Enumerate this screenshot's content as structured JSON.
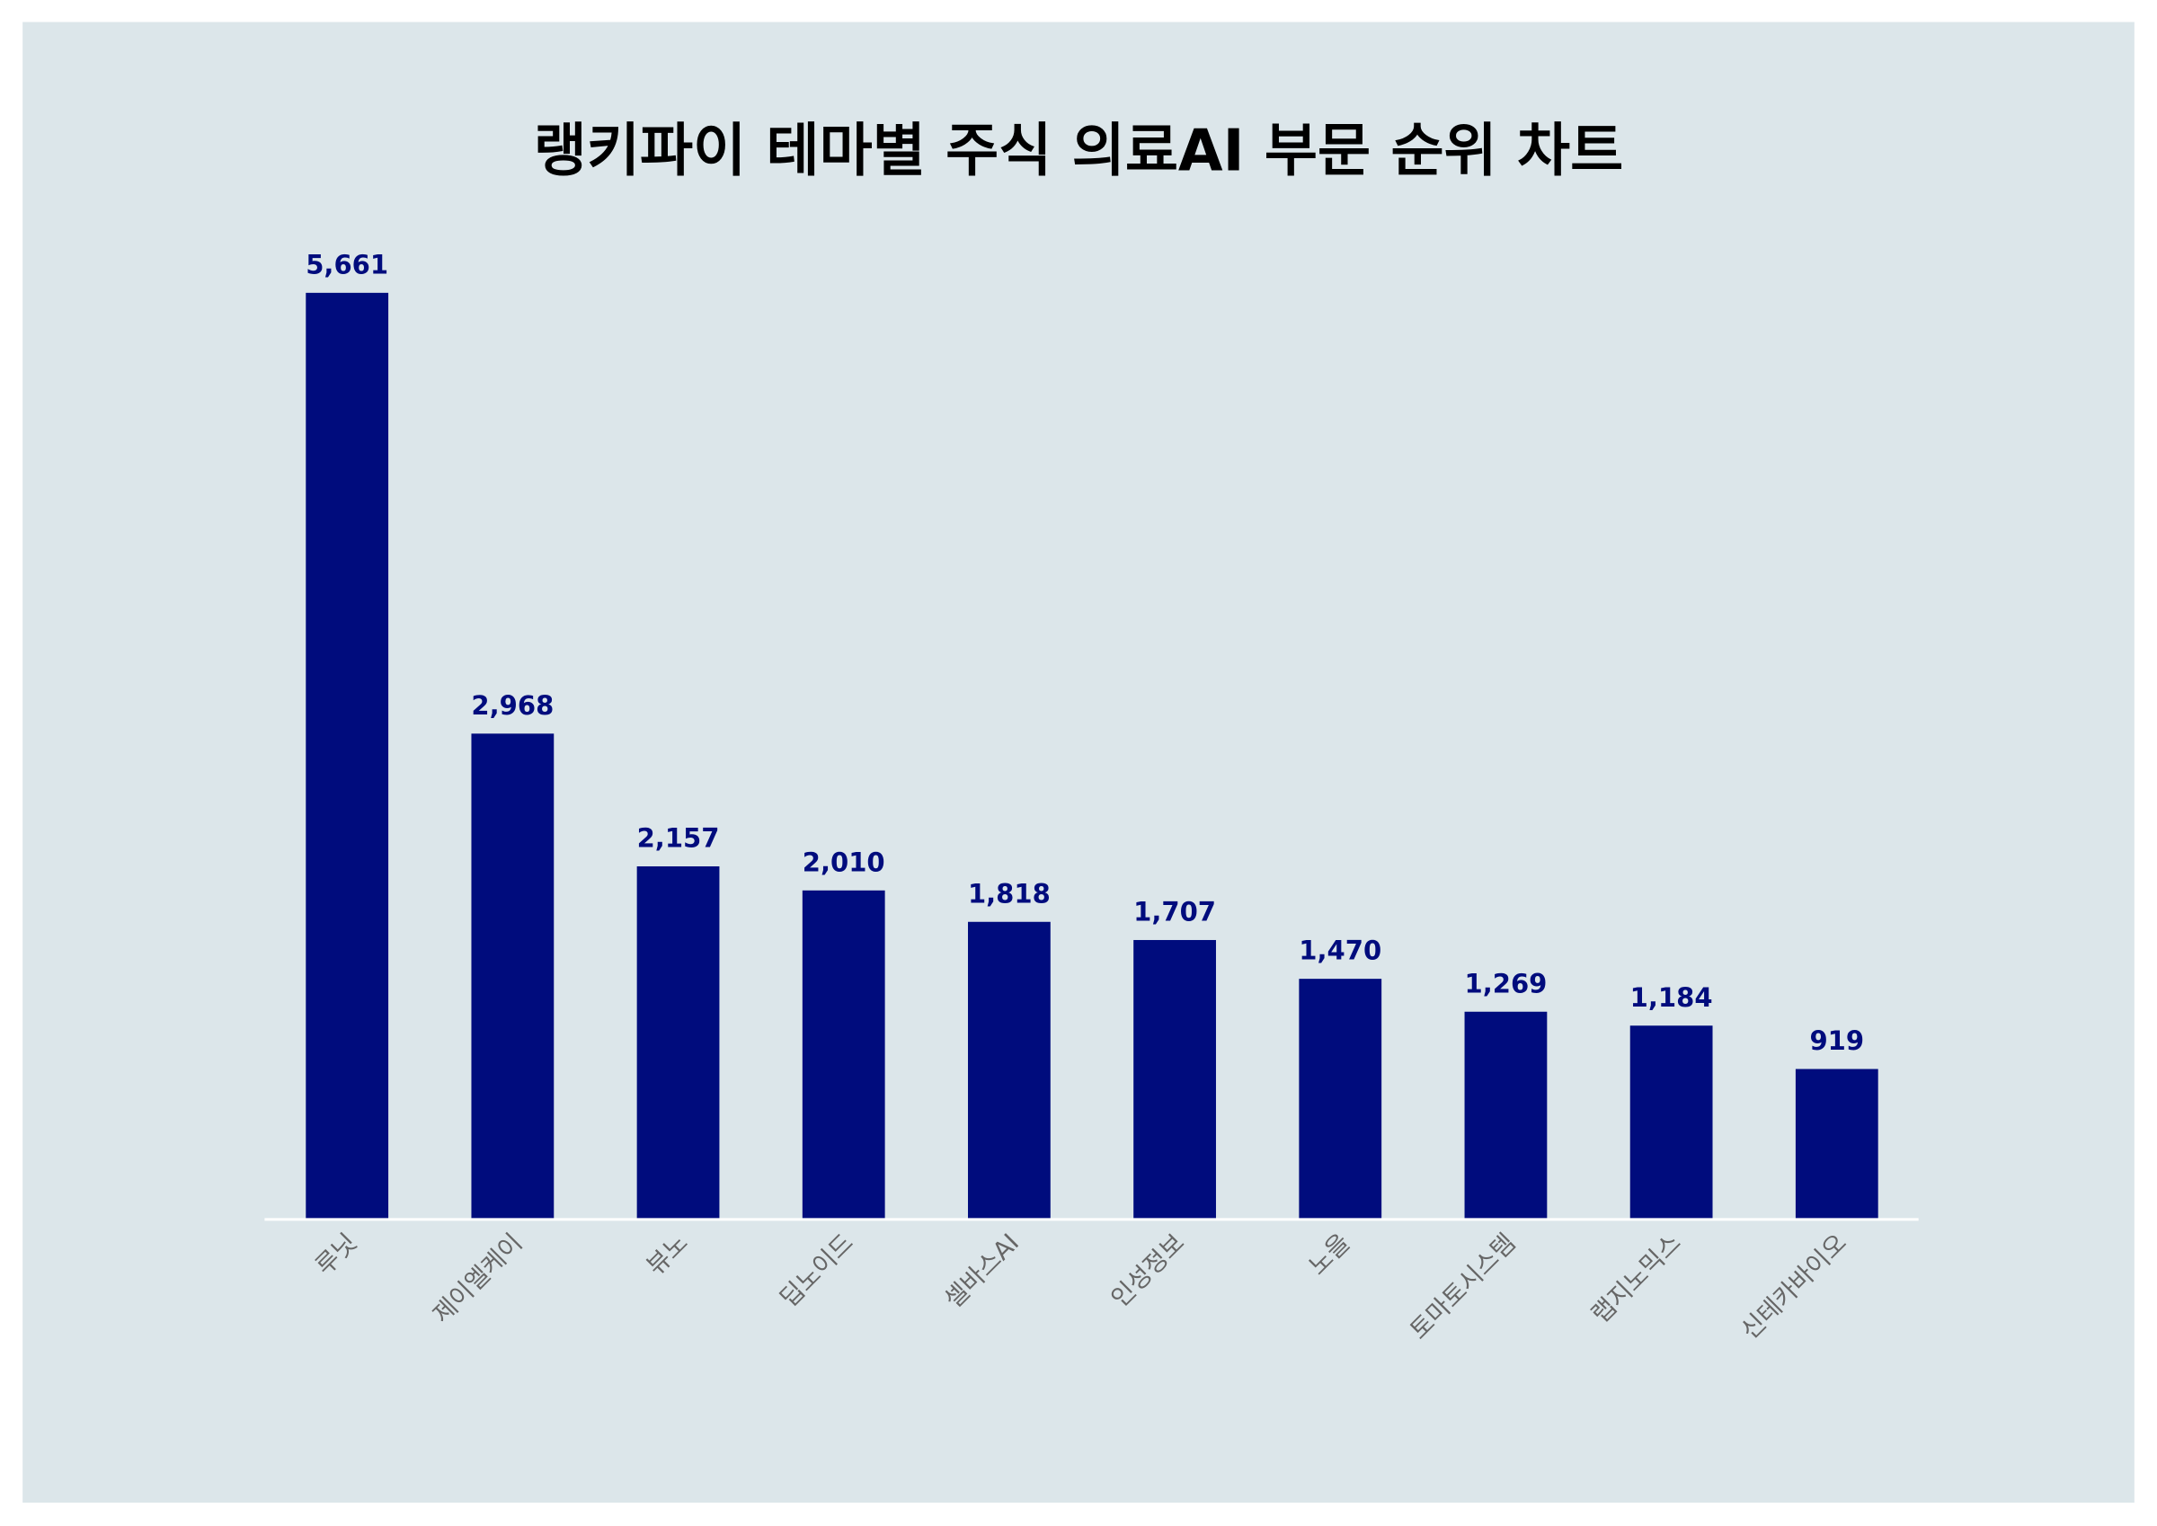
{
  "chart_data": {
    "type": "bar",
    "title": "랭키파이 테마별 주식 의료AI 부문 순위 차트",
    "categories": [
      "루닛",
      "제이엘케이",
      "뷰노",
      "딥노이드",
      "셀바스AI",
      "인성정보",
      "노을",
      "토마토시스템",
      "랩지노믹스",
      "신테카바이오"
    ],
    "values": [
      5661,
      2968,
      2157,
      2010,
      1818,
      1707,
      1470,
      1269,
      1184,
      919
    ],
    "value_labels": [
      "5,661",
      "2,968",
      "2,157",
      "2,010",
      "1,818",
      "1,707",
      "1,470",
      "1,269",
      "1,184",
      "919"
    ],
    "xlabel": "",
    "ylabel": "",
    "ylim": [
      0,
      5661
    ],
    "grid": false,
    "legend": "none",
    "colors": {
      "bar": "#000c7d",
      "background": "#dce6ea",
      "page": "#ffffff",
      "value_label": "#000c7d",
      "category_label": "#666666"
    }
  }
}
